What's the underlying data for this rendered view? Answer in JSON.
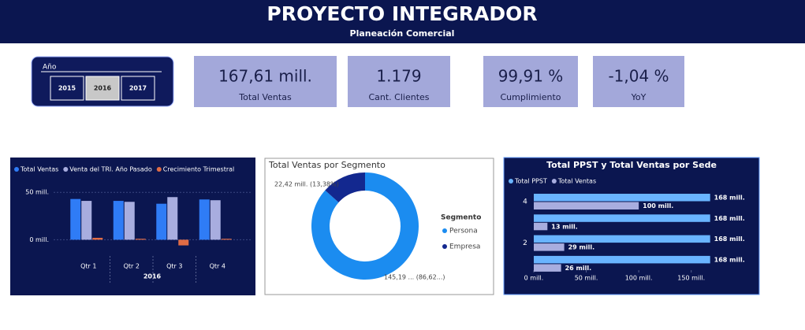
{
  "header": {
    "title": "PROYECTO INTEGRADOR",
    "subtitle": "Planeación Comercial"
  },
  "slicer": {
    "label": "Año",
    "options": [
      "2015",
      "2016",
      "2017"
    ],
    "selected": 1
  },
  "cards": [
    {
      "value": "167,61 mill.",
      "label": "Total Ventas"
    },
    {
      "value": "1.179",
      "label": "Cant. Clientes"
    },
    {
      "value": "99,91 %",
      "label": "Cumplimiento"
    },
    {
      "value": "-1,04 %",
      "label": "YoY"
    }
  ],
  "chart_data": [
    {
      "type": "bar",
      "categories": [
        "Qtr 1",
        "Qtr 2",
        "Qtr 3",
        "Qtr 4"
      ],
      "group_label": "2016",
      "series": [
        {
          "name": "Total Ventas",
          "color": "#2f7cf6",
          "values": [
            43,
            41,
            38,
            42.5
          ]
        },
        {
          "name": "Venta del TRI. Año Pasado",
          "color": "#a8addf",
          "values": [
            41,
            40,
            45,
            41.7
          ]
        },
        {
          "name": "Crecimiento Trimestral",
          "color": "#e06c45",
          "values": [
            2,
            1,
            -6,
            1
          ]
        }
      ],
      "ylim": [
        -13,
        66
      ],
      "yticks": [
        {
          "value": 0,
          "label": "0 mill."
        },
        {
          "value": 50,
          "label": "50 mill."
        }
      ]
    },
    {
      "type": "donut",
      "title": "Total Ventas por Segmento",
      "legend_title": "Segmento",
      "categories": [
        "Persona",
        "Empresa"
      ],
      "values": [
        145.19,
        22.42
      ],
      "value_labels": [
        "145,19 ... (86,62...)",
        "22,42 mill. (13,38%)"
      ],
      "colors": [
        "#1b8cf0",
        "#13288f"
      ]
    },
    {
      "type": "hbar",
      "title": "Total PPST y Total Ventas por Sede",
      "categories": [
        "4",
        null,
        "2",
        null
      ],
      "series": [
        {
          "name": "Total PPST",
          "color": "#69b4ff",
          "values": [
            168,
            168,
            168,
            168
          ],
          "value_labels": [
            "168 mill.",
            "168 mill.",
            "168 mill.",
            "168 mill."
          ]
        },
        {
          "name": "Total Ventas",
          "color": "#a8addf",
          "values": [
            100,
            13,
            29,
            26
          ],
          "value_labels": [
            "100 mill.",
            "13 mill.",
            "29 mill.",
            "26 mill."
          ]
        }
      ],
      "xlim": [
        0,
        175
      ],
      "xticks": [
        {
          "value": 0,
          "label": "0 mill."
        },
        {
          "value": 50,
          "label": "50 mill."
        },
        {
          "value": 100,
          "label": "100 mill."
        },
        {
          "value": 150,
          "label": "150 mill."
        }
      ]
    }
  ]
}
